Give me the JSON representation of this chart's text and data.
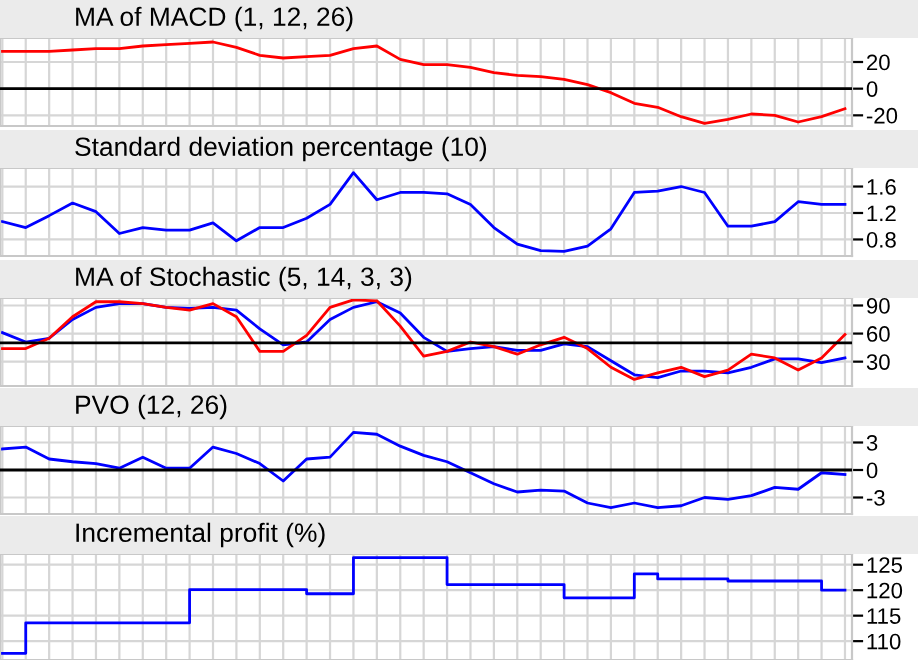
{
  "chart_data": [
    {
      "type": "line",
      "title": "MA of MACD (1, 12, 26)",
      "categories": [
        null,
        null,
        null,
        null,
        null,
        null,
        null,
        null,
        null,
        null,
        null,
        null,
        null,
        null,
        null,
        null,
        null,
        null,
        null,
        null,
        null,
        null,
        null,
        null,
        null,
        null,
        null,
        null,
        null,
        null,
        null,
        null,
        null,
        null,
        null,
        null,
        null
      ],
      "series": [
        {
          "color": "#ff0000",
          "values": [
            28,
            28,
            28,
            29,
            30,
            30,
            32,
            33,
            34,
            35,
            31,
            25,
            23,
            24,
            25,
            30,
            32,
            22,
            18,
            18,
            16,
            12,
            10,
            9,
            7,
            3,
            -3,
            -11,
            -14,
            -21,
            -26,
            -23,
            -19,
            -20,
            -25,
            -21,
            -15
          ]
        }
      ],
      "ylim": [
        -28,
        38
      ],
      "yticks": [
        -20,
        0,
        20
      ],
      "grid": true,
      "tick_labels": "y",
      "ref_lines": [
        {
          "axis": "y",
          "value": 0,
          "color": "#000000"
        }
      ]
    },
    {
      "type": "line",
      "title": "Standard deviation percentage (10)",
      "categories": [
        null,
        null,
        null,
        null,
        null,
        null,
        null,
        null,
        null,
        null,
        null,
        null,
        null,
        null,
        null,
        null,
        null,
        null,
        null,
        null,
        null,
        null,
        null,
        null,
        null,
        null,
        null,
        null,
        null,
        null,
        null,
        null,
        null,
        null,
        null,
        null,
        null
      ],
      "series": [
        {
          "color": "#0000ff",
          "values": [
            1.07,
            0.98,
            1.16,
            1.35,
            1.22,
            0.89,
            0.98,
            0.94,
            0.94,
            1.05,
            0.78,
            0.98,
            0.98,
            1.12,
            1.33,
            1.81,
            1.4,
            1.51,
            1.51,
            1.49,
            1.33,
            0.98,
            0.73,
            0.63,
            0.62,
            0.7,
            0.96,
            1.51,
            1.53,
            1.6,
            1.51,
            1.0,
            1.0,
            1.07,
            1.37,
            1.33,
            1.33
          ]
        }
      ],
      "ylim": [
        0.55,
        1.88
      ],
      "yticks": [
        0.8,
        1.2,
        1.6
      ],
      "grid": true,
      "tick_labels": "y"
    },
    {
      "type": "line",
      "title": "MA of Stochastic (5, 14, 3, 3)",
      "categories": [
        null,
        null,
        null,
        null,
        null,
        null,
        null,
        null,
        null,
        null,
        null,
        null,
        null,
        null,
        null,
        null,
        null,
        null,
        null,
        null,
        null,
        null,
        null,
        null,
        null,
        null,
        null,
        null,
        null,
        null,
        null,
        null,
        null,
        null,
        null,
        null,
        null
      ],
      "series": [
        {
          "color": "#0000ff",
          "values": [
            61,
            51,
            55,
            75,
            88,
            92,
            92,
            88,
            87,
            88,
            85,
            65,
            48,
            51,
            75,
            88,
            94,
            82,
            56,
            41,
            44,
            46,
            42,
            42,
            49,
            46,
            31,
            16,
            13,
            20,
            20,
            18,
            24,
            33,
            33,
            29,
            34
          ]
        },
        {
          "color": "#ff0000",
          "values": [
            44,
            44,
            55,
            78,
            94,
            94,
            92,
            88,
            85,
            92,
            78,
            41,
            41,
            58,
            88,
            96,
            95,
            68,
            36,
            41,
            51,
            46,
            38,
            48,
            56,
            44,
            24,
            11,
            18,
            24,
            14,
            21,
            38,
            34,
            21,
            34,
            59
          ]
        }
      ],
      "ylim": [
        4,
        98
      ],
      "yticks": [
        30,
        60,
        90
      ],
      "grid": true,
      "tick_labels": "y",
      "ref_lines": [
        {
          "axis": "y",
          "value": 50,
          "color": "#000000"
        }
      ]
    },
    {
      "type": "line",
      "title": "PVO (12, 26)",
      "categories": [
        null,
        null,
        null,
        null,
        null,
        null,
        null,
        null,
        null,
        null,
        null,
        null,
        null,
        null,
        null,
        null,
        null,
        null,
        null,
        null,
        null,
        null,
        null,
        null,
        null,
        null,
        null,
        null,
        null,
        null,
        null,
        null,
        null,
        null,
        null,
        null,
        null
      ],
      "series": [
        {
          "color": "#0000ff",
          "values": [
            2.3,
            2.5,
            1.2,
            0.9,
            0.7,
            0.2,
            1.4,
            0.2,
            0.2,
            2.5,
            1.8,
            0.7,
            -1.2,
            1.2,
            1.4,
            4.1,
            3.9,
            2.6,
            1.6,
            0.9,
            -0.3,
            -1.5,
            -2.4,
            -2.2,
            -2.3,
            -3.6,
            -4.1,
            -3.6,
            -4.1,
            -3.9,
            -3.0,
            -3.2,
            -2.8,
            -1.9,
            -2.1,
            -0.3,
            -0.5
          ]
        }
      ],
      "ylim": [
        -4.8,
        4.8
      ],
      "yticks": [
        -3,
        0,
        3
      ],
      "grid": true,
      "tick_labels": "y",
      "ref_lines": [
        {
          "axis": "y",
          "value": 0,
          "color": "#000000"
        }
      ]
    },
    {
      "type": "step",
      "title": "Incremental profit (%)",
      "categories": [
        null,
        null,
        null,
        null,
        null,
        null,
        null,
        null,
        null,
        null,
        null,
        null,
        null,
        null,
        null,
        null,
        null,
        null,
        null,
        null,
        null,
        null,
        null,
        null,
        null,
        null,
        null,
        null,
        null,
        null,
        null,
        null,
        null,
        null,
        null,
        null,
        null
      ],
      "series": [
        {
          "color": "#0000ff",
          "values": [
            107.6,
            113.6,
            113.6,
            113.6,
            113.6,
            113.6,
            113.6,
            113.6,
            120.1,
            120.1,
            120.1,
            120.1,
            120.1,
            119.3,
            119.3,
            126.4,
            126.4,
            126.4,
            126.4,
            121.1,
            121.1,
            121.1,
            121.1,
            121.1,
            118.5,
            118.5,
            118.5,
            123.2,
            122.2,
            122.2,
            122.2,
            121.8,
            121.8,
            121.8,
            121.8,
            120,
            120
          ]
        }
      ],
      "ylim": [
        106.3,
        127.1
      ],
      "yticks": [
        110,
        115,
        120,
        125
      ],
      "grid": true,
      "tick_labels": "y"
    }
  ]
}
